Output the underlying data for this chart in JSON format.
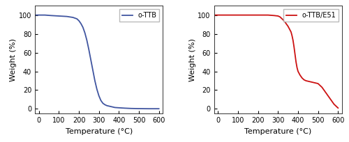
{
  "left": {
    "label": "o-TTB",
    "color": "#4055a0",
    "x": [
      -20,
      0,
      30,
      60,
      100,
      140,
      170,
      190,
      200,
      210,
      220,
      230,
      240,
      250,
      260,
      270,
      280,
      290,
      300,
      310,
      320,
      330,
      340,
      360,
      380,
      400,
      430,
      460,
      500,
      550,
      600
    ],
    "y": [
      100,
      100,
      100,
      99.5,
      99,
      98.5,
      97.5,
      96,
      94,
      91,
      87,
      81,
      73,
      63,
      52,
      41,
      30,
      21,
      14,
      9,
      6,
      4.5,
      3.5,
      2.5,
      1.5,
      1.2,
      0.8,
      0.5,
      0.3,
      0.2,
      0.2
    ],
    "xlim": [
      -20,
      620
    ],
    "ylim": [
      -5,
      110
    ],
    "xticks": [
      0,
      100,
      200,
      300,
      400,
      500,
      600
    ],
    "yticks": [
      0,
      20,
      40,
      60,
      80,
      100
    ],
    "xlabel": "Temperature (°C)",
    "ylabel": "Weight (%)"
  },
  "right": {
    "label": "o-TTB/E51",
    "color": "#cc1111",
    "x": [
      -20,
      0,
      50,
      100,
      150,
      200,
      250,
      280,
      300,
      310,
      320,
      330,
      340,
      350,
      360,
      365,
      370,
      375,
      380,
      385,
      390,
      395,
      400,
      410,
      420,
      430,
      440,
      450,
      460,
      470,
      480,
      490,
      500,
      520,
      540,
      560,
      580,
      600
    ],
    "y": [
      100,
      100,
      100,
      100,
      100,
      100,
      100,
      99.5,
      99,
      98,
      96,
      94,
      91,
      88,
      84,
      82,
      78,
      73,
      66,
      58,
      50,
      44,
      40,
      36,
      33,
      31,
      30,
      29.5,
      29,
      28.5,
      28,
      27.5,
      27,
      23,
      17,
      11,
      5,
      1
    ],
    "xlim": [
      -20,
      620
    ],
    "ylim": [
      -5,
      110
    ],
    "xticks": [
      0,
      100,
      200,
      300,
      400,
      500,
      600
    ],
    "yticks": [
      0,
      20,
      40,
      60,
      80,
      100
    ],
    "xlabel": "Temperature (°C)",
    "ylabel": "Weight (%)"
  },
  "linewidth": 1.3,
  "tick_fontsize": 7,
  "label_fontsize": 8,
  "legend_fontsize": 7,
  "bg_color": "#ffffff",
  "fig_bg_color": "#ffffff",
  "spine_color": "#333333"
}
